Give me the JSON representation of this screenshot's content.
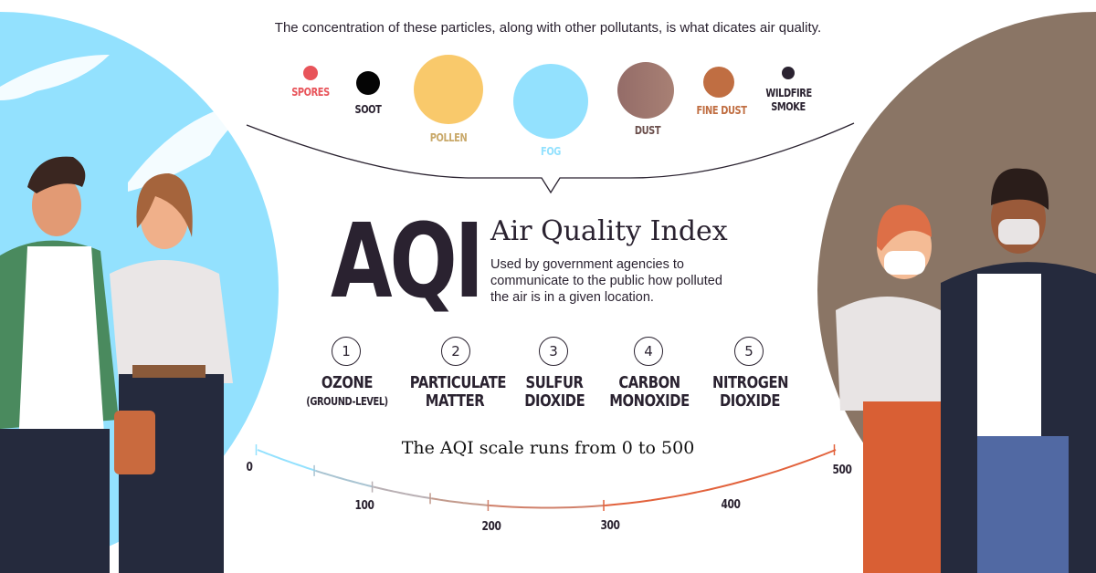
{
  "intro": "The concentration of these particles, along with other pollutants, is what dicates air quality.",
  "particles": [
    {
      "label": "SPORES",
      "color": "#e8545a"
    },
    {
      "label": "SOOT",
      "color": "#050505"
    },
    {
      "label": "POLLEN",
      "color": "#f9c96b"
    },
    {
      "label": "FOG",
      "color": "#93e1fe"
    },
    {
      "label": "DUST",
      "color": "#9a6f6a"
    },
    {
      "label": "FINE DUST",
      "color": "#c06e42"
    },
    {
      "label": "WILDFIRE SMOKE",
      "color": "#2a2230"
    }
  ],
  "particle_label_colors": [
    "#e8545a",
    "#2a2230",
    "#c9a96a",
    "#93e1fe",
    "#6b4f4c",
    "#c06e42",
    "#2a2230"
  ],
  "aqi": {
    "logo": "AQI",
    "title": "Air Quality Index",
    "description": "Used by government agencies to communicate to the public how polluted the air is in a given location."
  },
  "pollutants": [
    {
      "num": "1",
      "name": "OZONE",
      "note": "(GROUND-LEVEL)"
    },
    {
      "num": "2",
      "name": "PARTICULATE MATTER",
      "note": ""
    },
    {
      "num": "3",
      "name": "SULFUR DIOXIDE",
      "note": ""
    },
    {
      "num": "4",
      "name": "CARBON MONOXIDE",
      "note": ""
    },
    {
      "num": "5",
      "name": "NITROGEN DIOXIDE",
      "note": ""
    }
  ],
  "scale": {
    "caption": "The AQI scale runs from 0 to 500",
    "ticks": [
      "0",
      "100",
      "200",
      "300",
      "400",
      "500"
    ],
    "segment_colors": [
      "#93e1fe",
      "#a9c4d2",
      "#b9b0b4",
      "#c29a8c",
      "#d0806a",
      "#e2623c"
    ]
  }
}
